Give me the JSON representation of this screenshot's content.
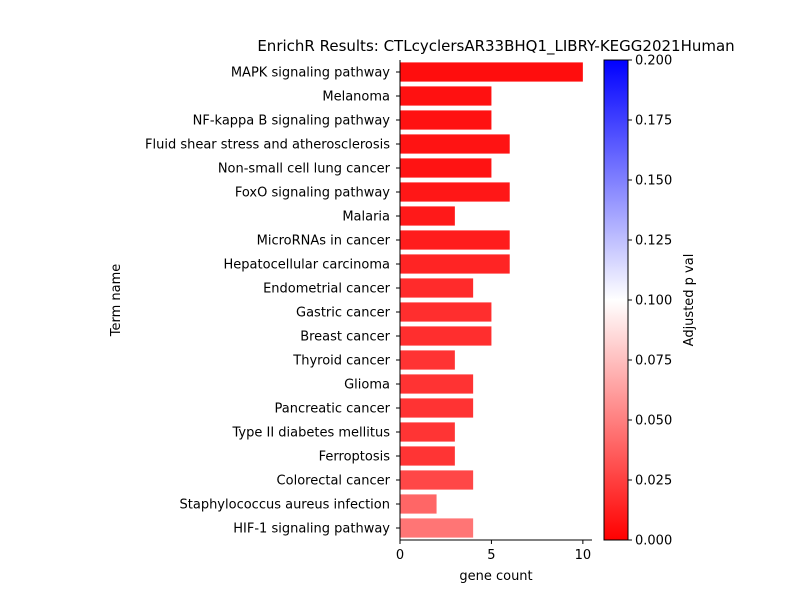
{
  "chart_data": {
    "type": "bar",
    "orientation": "horizontal",
    "title": "EnrichR Results: CTLcyclersAR33BHQ1_LIBRY-KEGG2021Human",
    "xlabel": "gene count",
    "ylabel": "Term name",
    "xlim": [
      0,
      10.5
    ],
    "xticks": [
      0,
      5,
      10
    ],
    "categories": [
      "MAPK signaling pathway",
      "Melanoma",
      "NF-kappa B signaling pathway",
      "Fluid shear stress and atherosclerosis",
      "Non-small cell lung cancer",
      "FoxO signaling pathway",
      "Malaria",
      "MicroRNAs in cancer",
      "Hepatocellular carcinoma",
      "Endometrial cancer",
      "Gastric cancer",
      "Breast cancer",
      "Thyroid cancer",
      "Glioma",
      "Pancreatic cancer",
      "Type II diabetes mellitus",
      "Ferroptosis",
      "Colorectal cancer",
      "Staphylococcus aureus infection",
      "HIF-1 signaling pathway"
    ],
    "values": [
      10,
      5,
      5,
      6,
      5,
      6,
      3,
      6,
      6,
      4,
      5,
      5,
      3,
      4,
      4,
      3,
      3,
      4,
      2,
      4
    ],
    "color_values": [
      0.0052,
      0.0068,
      0.0068,
      0.0075,
      0.0075,
      0.009,
      0.01,
      0.011,
      0.014,
      0.017,
      0.018,
      0.018,
      0.02,
      0.02,
      0.02,
      0.0205,
      0.0205,
      0.028,
      0.04,
      0.046
    ],
    "grid": false,
    "colorbar": {
      "label": "Adjusted p val",
      "min": 0.0,
      "max": 0.2,
      "ticks": [
        "0.000",
        "0.025",
        "0.050",
        "0.075",
        "0.100",
        "0.125",
        "0.150",
        "0.175",
        "0.200"
      ],
      "colormap": [
        "#ff0000",
        "#ffffff",
        "#0000ff"
      ]
    }
  }
}
